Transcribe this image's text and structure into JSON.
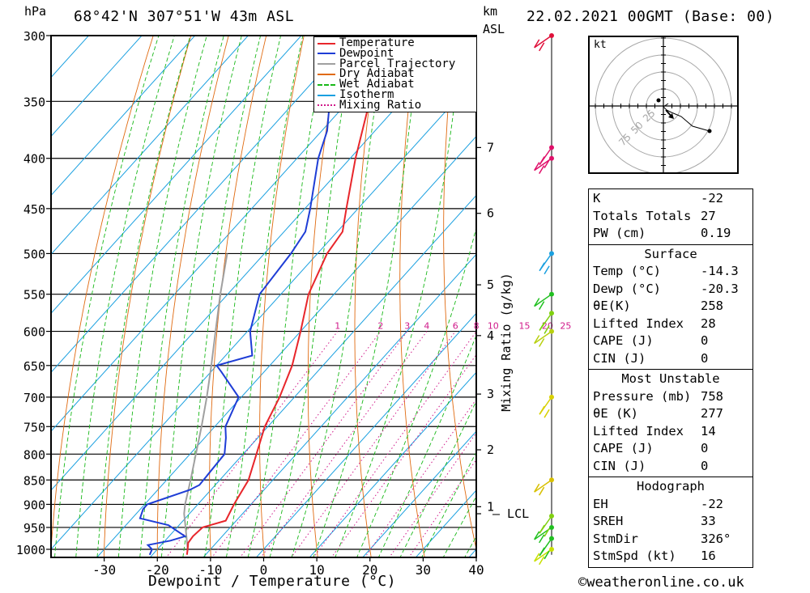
{
  "header": {
    "location": "68°42'N 307°51'W 43m ASL",
    "datetime": "22.02.2021 00GMT (Base: 00)",
    "left_unit": "hPa",
    "km_label": "km",
    "asl_label": "ASL"
  },
  "credit": "©weatheronline.co.uk",
  "hodograph": {
    "unit": "kt",
    "ring_labels": [
      "25",
      "50",
      "75"
    ]
  },
  "indices": {
    "general": [
      {
        "label": "K",
        "value": "-22"
      },
      {
        "label": "Totals Totals",
        "value": "27"
      },
      {
        "label": "PW (cm)",
        "value": "0.19"
      }
    ],
    "surface": {
      "title": "Surface",
      "rows": [
        {
          "label": "Temp (°C)",
          "value": "-14.3"
        },
        {
          "label": "Dewp (°C)",
          "value": "-20.3"
        },
        {
          "label": "θE(K)",
          "value": "258"
        },
        {
          "label": "Lifted Index",
          "value": "28"
        },
        {
          "label": "CAPE (J)",
          "value": "0"
        },
        {
          "label": "CIN (J)",
          "value": "0"
        }
      ]
    },
    "most_unstable": {
      "title": "Most Unstable",
      "rows": [
        {
          "label": "Pressure (mb)",
          "value": "758"
        },
        {
          "label": "θE (K)",
          "value": "277"
        },
        {
          "label": "Lifted Index",
          "value": "14"
        },
        {
          "label": "CAPE (J)",
          "value": "0"
        },
        {
          "label": "CIN (J)",
          "value": "0"
        }
      ]
    },
    "hodograph": {
      "title": "Hodograph",
      "rows": [
        {
          "label": "EH",
          "value": "-22"
        },
        {
          "label": "SREH",
          "value": "33"
        },
        {
          "label": "StmDir",
          "value": "326°"
        },
        {
          "label": "StmSpd (kt)",
          "value": "16"
        }
      ]
    }
  },
  "chart_data": {
    "type": "line",
    "subtype": "skew-T log-P",
    "xlabel": "Dewpoint / Temperature (°C)",
    "ylabel": "",
    "xlim": [
      -40,
      40
    ],
    "x_ticks": [
      -30,
      -20,
      -10,
      0,
      10,
      20,
      30,
      40
    ],
    "ylim_pressure": [
      1000,
      300
    ],
    "pressure_ticks": [
      300,
      350,
      400,
      450,
      500,
      550,
      600,
      650,
      700,
      750,
      800,
      850,
      900,
      950,
      1000
    ],
    "km_ticks": [
      {
        "label": "7",
        "p": 390
      },
      {
        "label": "6",
        "p": 455
      },
      {
        "label": "5",
        "p": 538
      },
      {
        "label": "4",
        "p": 606
      },
      {
        "label": "3",
        "p": 695
      },
      {
        "label": "2",
        "p": 792
      },
      {
        "label": "1",
        "p": 905
      }
    ],
    "lcl": {
      "label": "LCL",
      "p": 920
    },
    "mixing_ratio_axis_label": "Mixing Ratio (g/kg)",
    "mixing_ratio_labels": [
      "1",
      "2",
      "3",
      "4",
      "6",
      "8",
      "10",
      "15",
      "20",
      "25"
    ],
    "legend": {
      "placement": "top-center",
      "entries": [
        {
          "name": "Temperature",
          "color": "#e8262b",
          "style": "solid"
        },
        {
          "name": "Dewpoint",
          "color": "#1e3dd6",
          "style": "solid"
        },
        {
          "name": "Parcel Trajectory",
          "color": "#a0a0a0",
          "style": "solid"
        },
        {
          "name": "Dry Adiabat",
          "color": "#e06a10",
          "style": "solid"
        },
        {
          "name": "Wet Adiabat",
          "color": "#18b818",
          "style": "dashed"
        },
        {
          "name": "Isotherm",
          "color": "#1aa0e0",
          "style": "solid"
        },
        {
          "name": "Mixing Ratio",
          "color": "#d01a8a",
          "style": "dotted"
        }
      ]
    },
    "series": [
      {
        "name": "Temperature",
        "points": [
          [
            1013,
            -13.5
          ],
          [
            1000,
            -14.3
          ],
          [
            985,
            -15.3
          ],
          [
            970,
            -15.5
          ],
          [
            950,
            -15.2
          ],
          [
            935,
            -12.0
          ],
          [
            900,
            -13.2
          ],
          [
            850,
            -14.6
          ],
          [
            800,
            -17.5
          ],
          [
            750,
            -20.6
          ],
          [
            700,
            -22.8
          ],
          [
            650,
            -25.8
          ],
          [
            600,
            -30.0
          ],
          [
            550,
            -34.8
          ],
          [
            500,
            -38.2
          ],
          [
            475,
            -39.0
          ],
          [
            450,
            -42.2
          ],
          [
            400,
            -49.0
          ],
          [
            350,
            -56.0
          ],
          [
            300,
            -61.0
          ]
        ]
      },
      {
        "name": "Dewpoint",
        "points": [
          [
            1013,
            -20.5
          ],
          [
            1000,
            -21.0
          ],
          [
            990,
            -22.5
          ],
          [
            980,
            -19.0
          ],
          [
            970,
            -17.0
          ],
          [
            945,
            -22.0
          ],
          [
            930,
            -28.5
          ],
          [
            910,
            -29.5
          ],
          [
            900,
            -29.5
          ],
          [
            870,
            -24.0
          ],
          [
            860,
            -23.0
          ],
          [
            800,
            -23.5
          ],
          [
            770,
            -26.0
          ],
          [
            750,
            -28.0
          ],
          [
            700,
            -30.5
          ],
          [
            660,
            -38.0
          ],
          [
            650,
            -40.0
          ],
          [
            635,
            -35.0
          ],
          [
            600,
            -39.5
          ],
          [
            550,
            -44.0
          ],
          [
            500,
            -45.0
          ],
          [
            475,
            -46.0
          ],
          [
            450,
            -49.0
          ],
          [
            400,
            -56.0
          ],
          [
            375,
            -59.0
          ],
          [
            350,
            -63.5
          ],
          [
            330,
            -66.0
          ],
          [
            300,
            -72.0
          ]
        ]
      },
      {
        "name": "Parcel Trajectory",
        "points": [
          [
            1000,
            -14.3
          ],
          [
            950,
            -18.4
          ],
          [
            920,
            -21.0
          ],
          [
            900,
            -22.4
          ],
          [
            850,
            -25.5
          ],
          [
            800,
            -28.9
          ],
          [
            750,
            -32.5
          ],
          [
            700,
            -36.5
          ],
          [
            650,
            -41.0
          ],
          [
            600,
            -46.0
          ],
          [
            550,
            -51.4
          ],
          [
            500,
            -57.0
          ]
        ]
      }
    ],
    "wind_barbs": [
      {
        "p": 1000,
        "color": "#c8e000"
      },
      {
        "p": 975,
        "color": "#20c020"
      },
      {
        "p": 950,
        "color": "#20c020"
      },
      {
        "p": 925,
        "color": "#80d010"
      },
      {
        "p": 850,
        "color": "#d8c000"
      },
      {
        "p": 700,
        "color": "#d8d000"
      },
      {
        "p": 600,
        "color": "#b8d010"
      },
      {
        "p": 575,
        "color": "#80d010"
      },
      {
        "p": 550,
        "color": "#20c020"
      },
      {
        "p": 500,
        "color": "#1aa0e0"
      },
      {
        "p": 400,
        "color": "#e0106a"
      },
      {
        "p": 390,
        "color": "#e0106a"
      },
      {
        "p": 300,
        "color": "#e0103a"
      }
    ]
  }
}
